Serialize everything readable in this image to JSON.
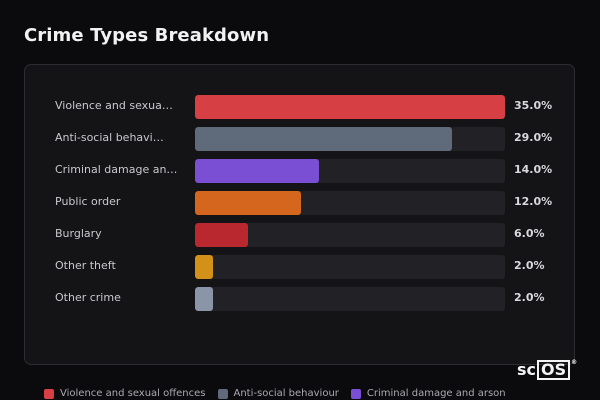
{
  "title": "Crime Types Breakdown",
  "chart_data": {
    "type": "bar",
    "orientation": "horizontal",
    "max_value": 35.0,
    "unit": "%",
    "categories": [
      "Violence and sexua…",
      "Anti-social behavi…",
      "Criminal damage an…",
      "Public order",
      "Burglary",
      "Other theft",
      "Other crime"
    ],
    "values": [
      35.0,
      29.0,
      14.0,
      12.0,
      6.0,
      2.0,
      2.0
    ],
    "value_labels": [
      "35.0%",
      "29.0%",
      "14.0%",
      "12.0%",
      "6.0%",
      "2.0%",
      "2.0%"
    ],
    "colors": [
      "#d64045",
      "#5f6b7a",
      "#7b4fd4",
      "#d4661e",
      "#b8282e",
      "#d4911a",
      "#8a95a8"
    ],
    "legend_placement": "bottom",
    "legend": [
      {
        "label": "Violence and sexual offences",
        "color": "#d64045"
      },
      {
        "label": "Anti-social behaviour",
        "color": "#5f6b7a"
      },
      {
        "label": "Criminal damage and arson",
        "color": "#7b4fd4"
      }
    ]
  },
  "logo": {
    "prefix": "sc",
    "boxed": "OS",
    "mark": "®"
  }
}
